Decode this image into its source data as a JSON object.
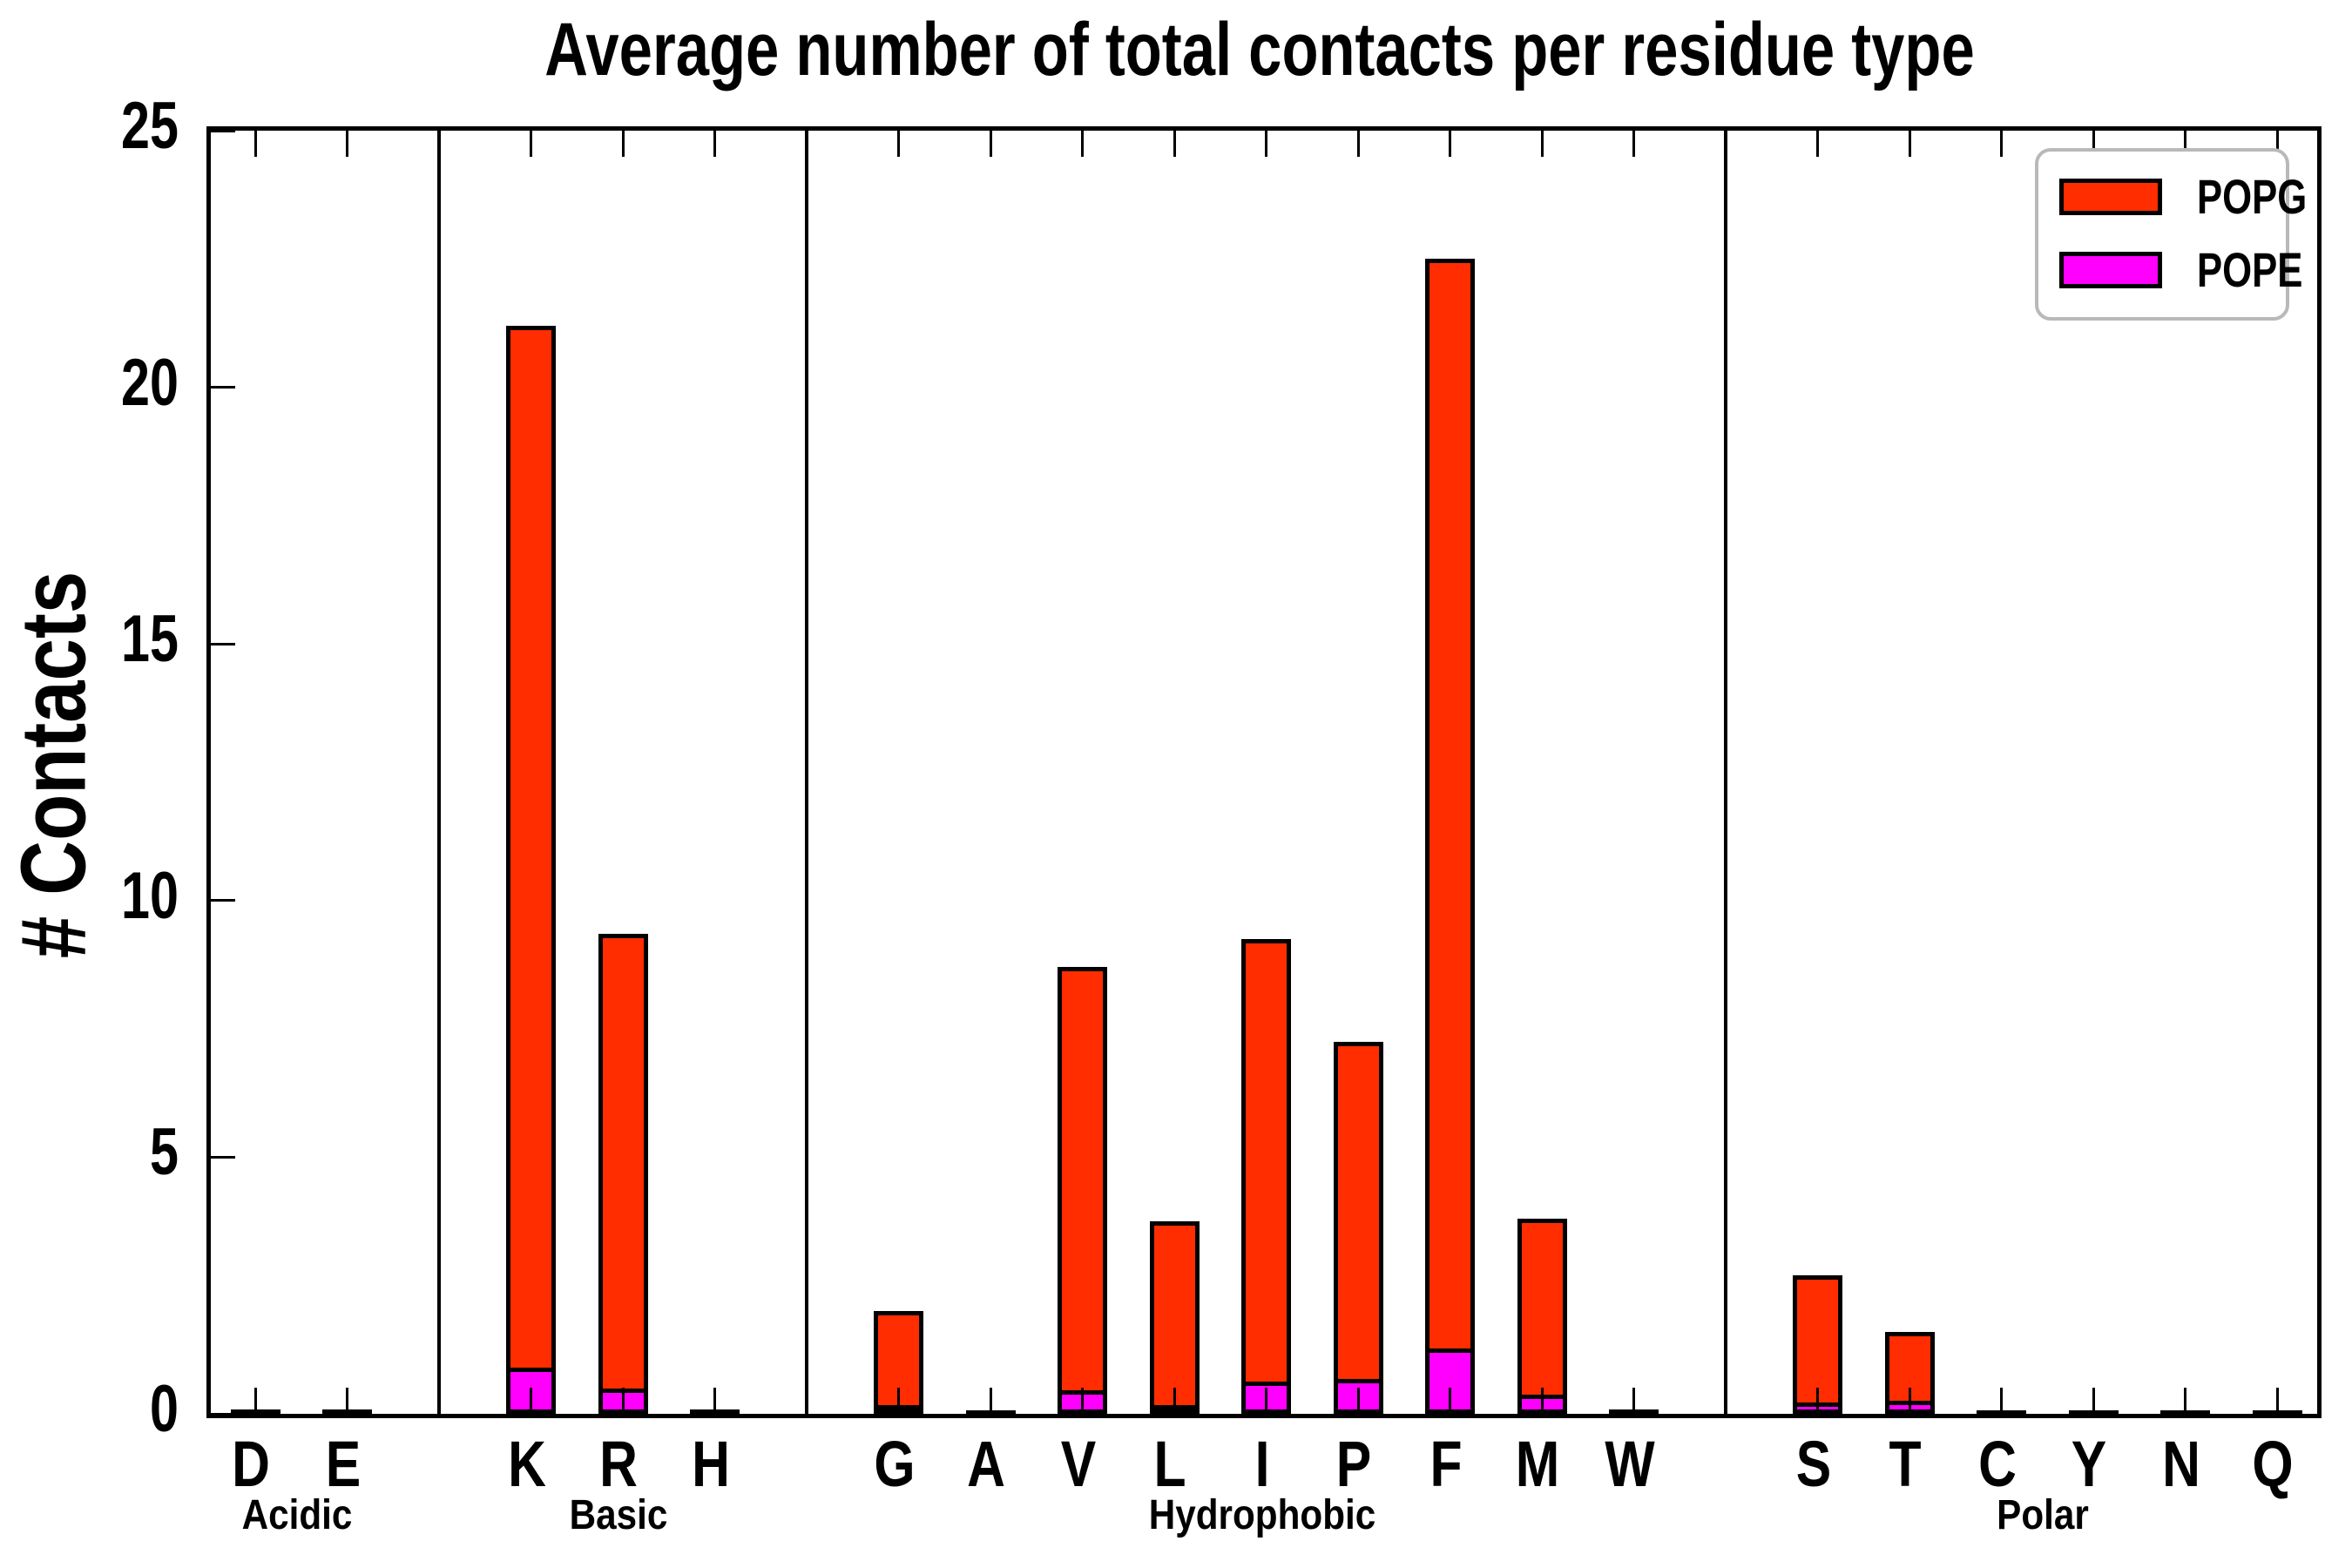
{
  "chart_data": {
    "type": "bar",
    "title": "Average number of total contacts per residue type",
    "ylabel": "# Contacts",
    "xlabel": "",
    "ylim": [
      0,
      25
    ],
    "yticks": [
      0,
      5,
      10,
      15,
      20,
      25
    ],
    "grid": false,
    "legend_position": "upper right",
    "bar_style": "POPE bar drawn from zero in front of taller POPG bar, black edges",
    "groups": [
      {
        "label": "Acidic",
        "categories": [
          "D",
          "E"
        ]
      },
      {
        "label": "Basic",
        "categories": [
          "K",
          "R",
          "H"
        ]
      },
      {
        "label": "Hydrophobic",
        "categories": [
          "G",
          "A",
          "V",
          "L",
          "I",
          "P",
          "F",
          "M",
          "W"
        ]
      },
      {
        "label": "Polar",
        "categories": [
          "S",
          "T",
          "C",
          "Y",
          "N",
          "Q"
        ]
      }
    ],
    "categories": [
      "D",
      "E",
      "K",
      "R",
      "H",
      "G",
      "A",
      "V",
      "L",
      "I",
      "P",
      "F",
      "M",
      "W",
      "S",
      "T",
      "C",
      "Y",
      "N",
      "Q"
    ],
    "series": [
      {
        "name": "POPG",
        "color": "#ff2d00",
        "values": [
          0.05,
          0.05,
          21.2,
          9.35,
          0.05,
          2.0,
          0.04,
          8.7,
          3.75,
          9.25,
          7.25,
          22.5,
          3.8,
          0.05,
          2.7,
          1.6,
          0.04,
          0.04,
          0.04,
          0.04
        ]
      },
      {
        "name": "POPE",
        "color": "#ff00ff",
        "values": [
          0.02,
          0.02,
          0.9,
          0.5,
          0.02,
          0.17,
          0.01,
          0.46,
          0.15,
          0.63,
          0.68,
          1.27,
          0.38,
          0.02,
          0.22,
          0.25,
          0.01,
          0.01,
          0.01,
          0.01
        ]
      }
    ],
    "colors": {
      "axis": "#000000",
      "background": "#ffffff",
      "legend_border": "#b9b9b9"
    }
  }
}
